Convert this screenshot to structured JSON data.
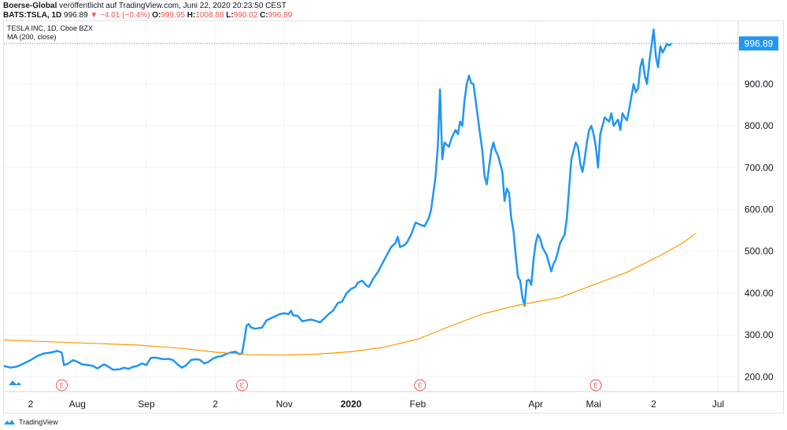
{
  "header": {
    "publisher": "Boerse-Global",
    "published_text": "veröffentlicht auf TradingView.com, Juni 22, 2020 20:23:50 CEST",
    "symbol": "BATS:TSLA, 1D",
    "last": "996.89",
    "change": "▼ −4.01 (−0.4%)",
    "o_label": "O:",
    "o_value": "999.95",
    "h_label": "H:",
    "h_value": "1008.88",
    "l_label": "L:",
    "l_value": "990.02",
    "c_label": "C:",
    "c_value": "996.89"
  },
  "legend": {
    "title": "TESLA INC, 1D, Cboe BZX",
    "ma": "MA (200, close)"
  },
  "footer": {
    "brand": "TradingView"
  },
  "colors": {
    "price_line": "#2196f3",
    "ma_line": "#ff9800",
    "grid": "#f0f3fa",
    "price_tag": "#2196f3",
    "earnings_marker": "#ef5350"
  },
  "chart_data": {
    "type": "line",
    "title": "TESLA INC, 1D, Cboe BZX",
    "xlabel": "",
    "ylabel": "",
    "ylim": [
      165,
      1050
    ],
    "y_ticks": [
      200,
      300,
      400,
      500,
      600,
      700,
      800,
      900
    ],
    "y_tick_labels": [
      "200.00",
      "300.00",
      "400.00",
      "500.00",
      "600.00",
      "700.00",
      "800.00",
      "900.00"
    ],
    "x_ticks": [
      {
        "label": "2",
        "x": 12
      },
      {
        "label": "Aug",
        "x": 33
      },
      {
        "label": "Sep",
        "x": 64
      },
      {
        "label": "2",
        "x": 95
      },
      {
        "label": "Nov",
        "x": 126
      },
      {
        "label": "2020",
        "x": 156
      },
      {
        "label": "Feb",
        "x": 186
      },
      {
        "label": "Apr",
        "x": 239
      },
      {
        "label": "Mai",
        "x": 265
      },
      {
        "label": "2",
        "x": 292
      },
      {
        "label": "Jul",
        "x": 321
      }
    ],
    "x_bold_labels": [
      "2020"
    ],
    "last_price": "996.89",
    "earnings_markers_x": [
      26,
      107,
      187,
      266
    ],
    "series": [
      {
        "name": "TESLA INC",
        "points": [
          [
            0,
            226
          ],
          [
            3,
            222
          ],
          [
            6,
            225
          ],
          [
            9,
            232
          ],
          [
            12,
            240
          ],
          [
            15,
            250
          ],
          [
            18,
            256
          ],
          [
            21,
            258
          ],
          [
            24,
            262
          ],
          [
            26,
            258
          ],
          [
            27,
            228
          ],
          [
            29,
            232
          ],
          [
            31,
            240
          ],
          [
            33,
            236
          ],
          [
            35,
            230
          ],
          [
            38,
            228
          ],
          [
            40,
            226
          ],
          [
            42,
            220
          ],
          [
            45,
            230
          ],
          [
            47,
            224
          ],
          [
            49,
            217
          ],
          [
            52,
            218
          ],
          [
            54,
            222
          ],
          [
            56,
            219
          ],
          [
            58,
            224
          ],
          [
            60,
            226
          ],
          [
            62,
            232
          ],
          [
            64,
            228
          ],
          [
            66,
            245
          ],
          [
            68,
            246
          ],
          [
            70,
            244
          ],
          [
            72,
            242
          ],
          [
            74,
            243
          ],
          [
            76,
            240
          ],
          [
            78,
            230
          ],
          [
            80,
            222
          ],
          [
            82,
            228
          ],
          [
            84,
            240
          ],
          [
            86,
            242
          ],
          [
            88,
            241
          ],
          [
            90,
            232
          ],
          [
            92,
            236
          ],
          [
            94,
            244
          ],
          [
            96,
            248
          ],
          [
            98,
            250
          ],
          [
            100,
            255
          ],
          [
            102,
            258
          ],
          [
            104,
            260
          ],
          [
            106,
            254
          ],
          [
            107,
            256
          ],
          [
            108,
            285
          ],
          [
            109,
            322
          ],
          [
            110,
            326
          ],
          [
            111,
            318
          ],
          [
            113,
            315
          ],
          [
            116,
            318
          ],
          [
            118,
            335
          ],
          [
            120,
            340
          ],
          [
            122,
            345
          ],
          [
            124,
            350
          ],
          [
            126,
            352
          ],
          [
            128,
            350
          ],
          [
            129,
            358
          ],
          [
            130,
            347
          ],
          [
            132,
            346
          ],
          [
            134,
            333
          ],
          [
            136,
            335
          ],
          [
            138,
            337
          ],
          [
            140,
            334
          ],
          [
            142,
            330
          ],
          [
            144,
            340
          ],
          [
            146,
            350
          ],
          [
            148,
            359
          ],
          [
            150,
            376
          ],
          [
            152,
            380
          ],
          [
            154,
            400
          ],
          [
            156,
            410
          ],
          [
            158,
            415
          ],
          [
            159,
            425
          ],
          [
            161,
            430
          ],
          [
            163,
            418
          ],
          [
            164,
            415
          ],
          [
            166,
            435
          ],
          [
            168,
            450
          ],
          [
            170,
            470
          ],
          [
            172,
            490
          ],
          [
            174,
            510
          ],
          [
            176,
            520
          ],
          [
            177,
            535
          ],
          [
            178,
            510
          ],
          [
            180,
            515
          ],
          [
            181,
            520
          ],
          [
            183,
            540
          ],
          [
            185,
            569
          ],
          [
            187,
            564
          ],
          [
            189,
            560
          ],
          [
            191,
            580
          ],
          [
            192,
            600
          ],
          [
            193,
            640
          ],
          [
            194,
            680
          ],
          [
            195,
            750
          ],
          [
            196,
            887
          ],
          [
            197,
            720
          ],
          [
            198,
            760
          ],
          [
            200,
            750
          ],
          [
            201,
            768
          ],
          [
            202,
            780
          ],
          [
            203,
            790
          ],
          [
            204,
            780
          ],
          [
            205,
            810
          ],
          [
            206,
            800
          ],
          [
            207,
            860
          ],
          [
            208,
            900
          ],
          [
            209,
            920
          ],
          [
            210,
            902
          ],
          [
            211,
            900
          ],
          [
            212,
            860
          ],
          [
            213,
            820
          ],
          [
            214,
            780
          ],
          [
            215,
            740
          ],
          [
            216,
            680
          ],
          [
            217,
            660
          ],
          [
            218,
            700
          ],
          [
            219,
            740
          ],
          [
            220,
            760
          ],
          [
            221,
            740
          ],
          [
            222,
            730
          ],
          [
            223,
            710
          ],
          [
            224,
            690
          ],
          [
            225,
            620
          ],
          [
            226,
            650
          ],
          [
            227,
            640
          ],
          [
            228,
            580
          ],
          [
            229,
            550
          ],
          [
            230,
            490
          ],
          [
            231,
            440
          ],
          [
            232,
            430
          ],
          [
            233,
            390
          ],
          [
            234,
            370
          ],
          [
            235,
            430
          ],
          [
            236,
            432
          ],
          [
            237,
            420
          ],
          [
            238,
            480
          ],
          [
            239,
            520
          ],
          [
            240,
            540
          ],
          [
            241,
            530
          ],
          [
            242,
            510
          ],
          [
            243,
            500
          ],
          [
            244,
            490
          ],
          [
            245,
            470
          ],
          [
            246,
            452
          ],
          [
            247,
            470
          ],
          [
            248,
            480
          ],
          [
            249,
            500
          ],
          [
            250,
            520
          ],
          [
            251,
            530
          ],
          [
            252,
            540
          ],
          [
            253,
            580
          ],
          [
            254,
            650
          ],
          [
            255,
            720
          ],
          [
            256,
            740
          ],
          [
            257,
            760
          ],
          [
            258,
            750
          ],
          [
            259,
            710
          ],
          [
            260,
            690
          ],
          [
            261,
            720
          ],
          [
            262,
            760
          ],
          [
            263,
            790
          ],
          [
            264,
            800
          ],
          [
            265,
            780
          ],
          [
            266,
            750
          ],
          [
            267,
            700
          ],
          [
            268,
            780
          ],
          [
            269,
            800
          ],
          [
            270,
            820
          ],
          [
            272,
            810
          ],
          [
            273,
            830
          ],
          [
            274,
            800
          ],
          [
            276,
            815
          ],
          [
            277,
            790
          ],
          [
            278,
            830
          ],
          [
            279,
            820
          ],
          [
            280,
            813
          ],
          [
            281,
            840
          ],
          [
            282,
            870
          ],
          [
            283,
            900
          ],
          [
            284,
            880
          ],
          [
            285,
            890
          ],
          [
            286,
            940
          ],
          [
            287,
            960
          ],
          [
            288,
            920
          ],
          [
            289,
            900
          ],
          [
            290,
            950
          ],
          [
            291,
            990
          ],
          [
            292,
            1030
          ],
          [
            293,
            965
          ],
          [
            294,
            940
          ],
          [
            295,
            990
          ],
          [
            296,
            975
          ],
          [
            297,
            985
          ],
          [
            298,
            996
          ],
          [
            299,
            992
          ],
          [
            300,
            997
          ]
        ]
      },
      {
        "name": "MA (200, close)",
        "points": [
          [
            0,
            288
          ],
          [
            20,
            284
          ],
          [
            40,
            280
          ],
          [
            60,
            276
          ],
          [
            80,
            268
          ],
          [
            95,
            259
          ],
          [
            110,
            253
          ],
          [
            126,
            252
          ],
          [
            140,
            254
          ],
          [
            156,
            260
          ],
          [
            170,
            270
          ],
          [
            186,
            290
          ],
          [
            200,
            320
          ],
          [
            215,
            350
          ],
          [
            230,
            370
          ],
          [
            240,
            380
          ],
          [
            250,
            390
          ],
          [
            265,
            420
          ],
          [
            280,
            450
          ],
          [
            295,
            490
          ],
          [
            305,
            520
          ],
          [
            311,
            543
          ]
        ]
      }
    ]
  }
}
